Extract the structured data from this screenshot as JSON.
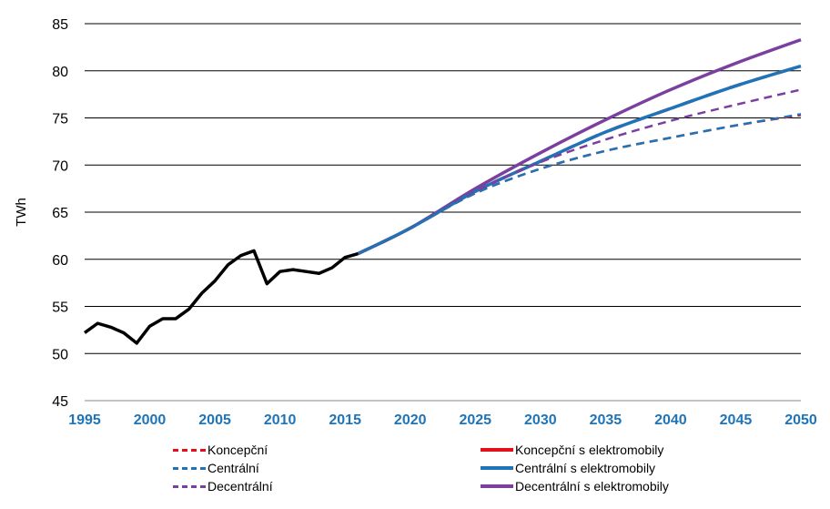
{
  "chart_data": {
    "type": "line",
    "ylabel": "TWh",
    "xlim": [
      1995,
      2050
    ],
    "ylim": [
      45,
      85
    ],
    "xticks": [
      "1995",
      "2000",
      "2005",
      "2010",
      "2015",
      "2020",
      "2025",
      "2030",
      "2035",
      "2040",
      "2045",
      "2050"
    ],
    "yticks": [
      "45",
      "50",
      "55",
      "60",
      "65",
      "70",
      "75",
      "80",
      "85"
    ],
    "grid": "horizontal",
    "legend_position": "bottom",
    "history": {
      "x": [
        1995,
        1996,
        1997,
        1998,
        1999,
        2000,
        2001,
        2002,
        2003,
        2004,
        2005,
        2006,
        2007,
        2008,
        2009,
        2010,
        2011,
        2012,
        2013,
        2014,
        2015,
        2016
      ],
      "y": [
        52.2,
        53.2,
        52.8,
        52.2,
        51.1,
        52.9,
        53.7,
        53.7,
        54.7,
        56.4,
        57.7,
        59.4,
        60.4,
        60.9,
        57.4,
        58.7,
        58.9,
        58.7,
        58.5,
        59.1,
        60.2,
        60.6
      ],
      "color": "#000000"
    },
    "series": [
      {
        "name": "Koncepční",
        "color": "#e3101b",
        "dash": "dash",
        "x": [
          2016,
          2020,
          2025,
          2030,
          2035,
          2040,
          2045,
          2050
        ],
        "y": [
          60.6,
          63.3,
          67.0,
          69.6,
          71.5,
          72.9,
          74.2,
          75.3
        ]
      },
      {
        "name": "Centrální",
        "color": "#1f74b8",
        "dash": "dash",
        "x": [
          2016,
          2020,
          2025,
          2030,
          2035,
          2040,
          2045,
          2050
        ],
        "y": [
          60.6,
          63.3,
          67.0,
          69.6,
          71.5,
          72.9,
          74.2,
          75.4
        ]
      },
      {
        "name": "Decentrální",
        "color": "#7b3fa0",
        "dash": "dash",
        "x": [
          2016,
          2020,
          2025,
          2030,
          2035,
          2040,
          2045,
          2050
        ],
        "y": [
          60.6,
          63.3,
          67.2,
          70.3,
          72.7,
          74.7,
          76.4,
          78.0
        ]
      },
      {
        "name": "Koncepční s elektromobily",
        "color": "#e3101b",
        "dash": "solid",
        "x": [
          2016,
          2020,
          2025,
          2030,
          2035,
          2040,
          2045,
          2050
        ],
        "y": [
          60.6,
          63.3,
          67.2,
          70.4,
          73.5,
          76.0,
          78.4,
          80.5
        ]
      },
      {
        "name": "Centrální s elektromobily",
        "color": "#1f74b8",
        "dash": "solid",
        "x": [
          2016,
          2020,
          2025,
          2030,
          2035,
          2040,
          2045,
          2050
        ],
        "y": [
          60.6,
          63.3,
          67.2,
          70.4,
          73.5,
          76.0,
          78.4,
          80.5
        ]
      },
      {
        "name": "Decentrální s elektromobily",
        "color": "#7b3fa0",
        "dash": "solid",
        "x": [
          2016,
          2020,
          2025,
          2030,
          2035,
          2040,
          2045,
          2050
        ],
        "y": [
          60.6,
          63.3,
          67.5,
          71.3,
          74.8,
          78.0,
          80.8,
          83.3
        ]
      }
    ]
  }
}
